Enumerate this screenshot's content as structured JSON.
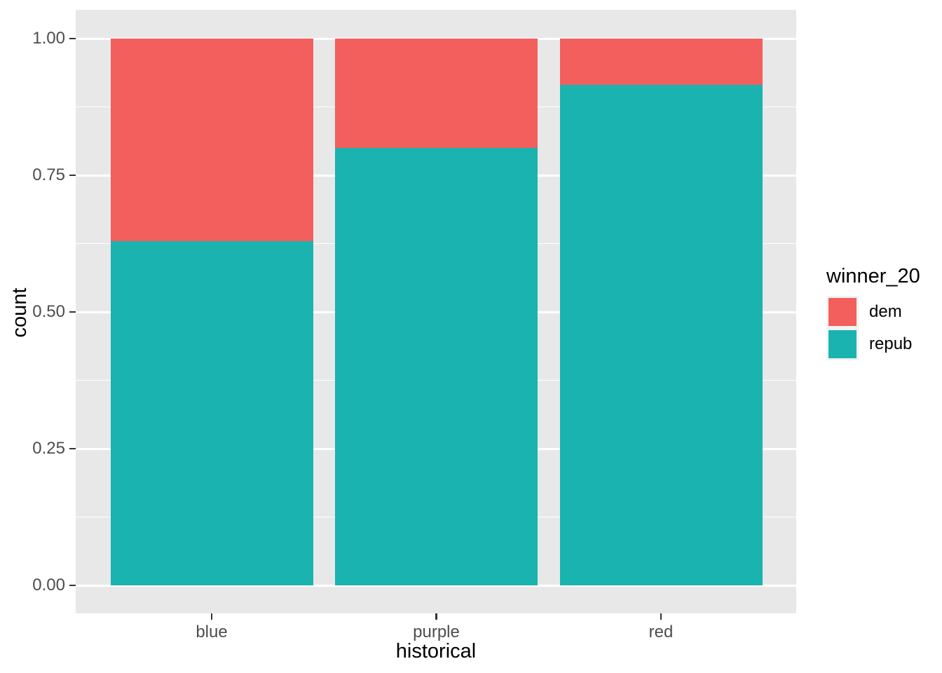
{
  "chart_data": {
    "type": "bar",
    "stacking": "fill",
    "orientation": "vertical",
    "categories": [
      "blue",
      "purple",
      "red"
    ],
    "series": [
      {
        "name": "dem",
        "color": "#F25F5C",
        "values": [
          0.37,
          0.2,
          0.085
        ]
      },
      {
        "name": "repub",
        "color": "#1AB3B0",
        "values": [
          0.63,
          0.8,
          0.915
        ]
      }
    ],
    "title": "",
    "xlabel": "historical",
    "ylabel": "count",
    "ylim": [
      0,
      1
    ],
    "yticks": [
      0,
      0.25,
      0.5,
      0.75,
      1
    ],
    "ytick_labels": [
      "0.00",
      "0.25",
      "0.50",
      "0.75",
      "1.00"
    ],
    "yticks_minor": [
      0.125,
      0.375,
      0.625,
      0.875
    ],
    "grid": "on",
    "legend_title": "winner_20",
    "legend_position": "right",
    "panel_background": "#E8E8E8",
    "gridline_color": "#ffffff",
    "tick_text_color": "#4D4D4D",
    "axis_title_color": "#000000"
  }
}
